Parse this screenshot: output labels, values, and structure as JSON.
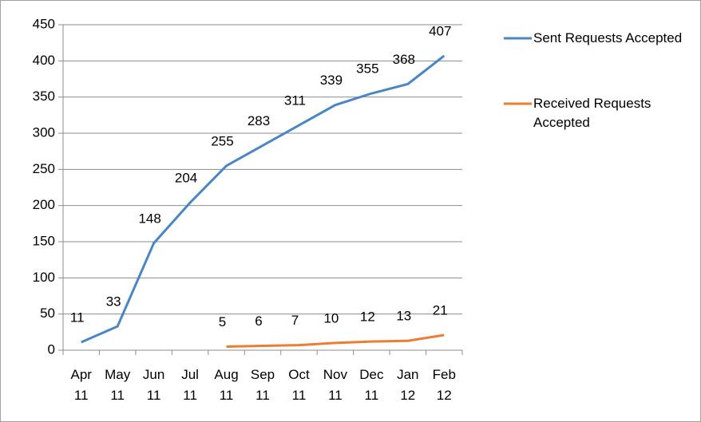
{
  "chart_data": {
    "type": "line",
    "categories": [
      "Apr 11",
      "May 11",
      "Jun 11",
      "Jul 11",
      "Aug 11",
      "Sep 11",
      "Oct 11",
      "Nov 11",
      "Dec 11",
      "Jan 12",
      "Feb 12"
    ],
    "series": [
      {
        "name": "Sent Requests Accepted",
        "color": "#4a86c5",
        "values": [
          11,
          33,
          148,
          204,
          255,
          283,
          311,
          339,
          355,
          368,
          407
        ]
      },
      {
        "name": "Received Requests Accepted",
        "color": "#ed7d31",
        "values": [
          null,
          null,
          null,
          null,
          5,
          6,
          7,
          10,
          12,
          13,
          21
        ]
      }
    ],
    "ylim": [
      0,
      450
    ],
    "yticks": [
      0,
      50,
      100,
      150,
      200,
      250,
      300,
      350,
      400,
      450
    ],
    "grid": true,
    "legend": "right"
  }
}
